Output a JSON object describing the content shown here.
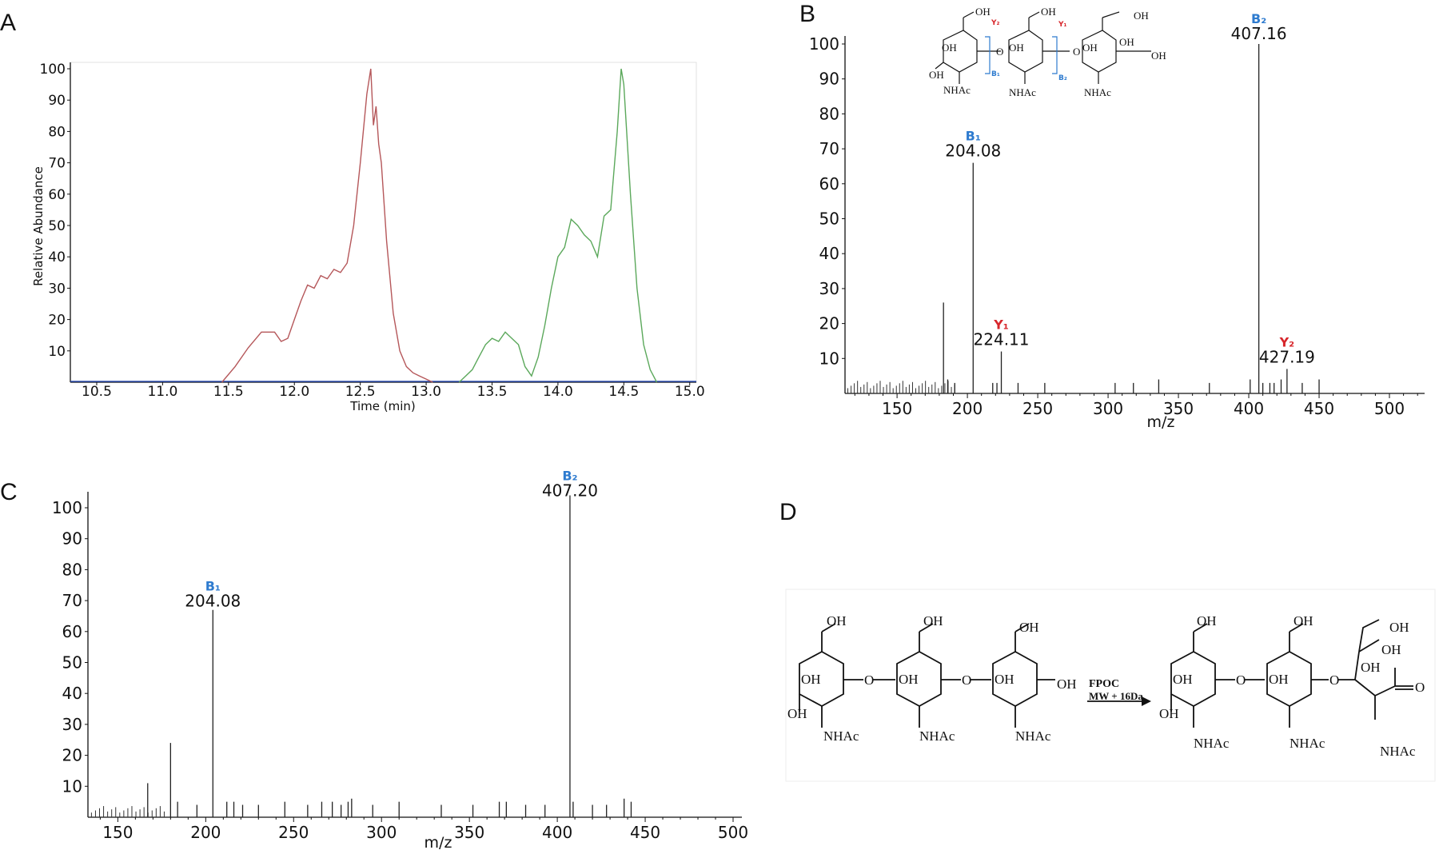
{
  "panels": {
    "a": "A",
    "b": "B",
    "c": "C",
    "d": "D"
  },
  "chart_data": [
    {
      "panel": "A",
      "type": "line",
      "xlabel": "Time (min)",
      "ylabel": "Relative Abundance",
      "xlim": [
        10.3,
        15.05
      ],
      "ylim": [
        0,
        100
      ],
      "xticks": [
        "10.5",
        "11.0",
        "11.5",
        "12.0",
        "12.5",
        "13.0",
        "13.5",
        "14.0",
        "14.5",
        "15.0"
      ],
      "yticks": [
        "10",
        "20",
        "30",
        "40",
        "50",
        "60",
        "70",
        "80",
        "90",
        "100"
      ],
      "series": [
        {
          "color": "#b5575a",
          "x": [
            11.45,
            11.55,
            11.65,
            11.75,
            11.85,
            11.9,
            11.95,
            12.0,
            12.05,
            12.1,
            12.15,
            12.2,
            12.25,
            12.3,
            12.35,
            12.4,
            12.45,
            12.5,
            12.55,
            12.58,
            12.6,
            12.62,
            12.64,
            12.66,
            12.7,
            12.75,
            12.8,
            12.85,
            12.9,
            12.95,
            13.0,
            13.05
          ],
          "y": [
            0,
            5,
            11,
            16,
            16,
            13,
            14,
            20,
            26,
            31,
            30,
            34,
            33,
            36,
            35,
            38,
            50,
            70,
            92,
            100,
            82,
            88,
            76,
            70,
            45,
            22,
            10,
            5,
            3,
            2,
            1,
            0
          ]
        },
        {
          "color": "#5ba85b",
          "x": [
            13.25,
            13.3,
            13.35,
            13.4,
            13.45,
            13.5,
            13.55,
            13.6,
            13.65,
            13.7,
            13.75,
            13.8,
            13.85,
            13.9,
            13.95,
            14.0,
            14.05,
            14.1,
            14.15,
            14.2,
            14.25,
            14.3,
            14.35,
            14.4,
            14.45,
            14.48,
            14.5,
            14.55,
            14.6,
            14.65,
            14.7,
            14.75
          ],
          "y": [
            0,
            2,
            4,
            8,
            12,
            14,
            13,
            16,
            14,
            12,
            5,
            2,
            8,
            18,
            30,
            40,
            43,
            52,
            50,
            47,
            45,
            40,
            53,
            55,
            80,
            100,
            95,
            60,
            30,
            12,
            4,
            0
          ]
        }
      ]
    },
    {
      "panel": "B",
      "type": "bar",
      "xlabel": "m/z",
      "xlim": [
        113,
        525
      ],
      "ylim": [
        0,
        100
      ],
      "xticks": [
        "150",
        "200",
        "250",
        "300",
        "350",
        "400",
        "450",
        "500"
      ],
      "yticks": [
        "10",
        "20",
        "30",
        "40",
        "50",
        "60",
        "70",
        "80",
        "90",
        "100"
      ],
      "peaks_mz": [
        183,
        186,
        191,
        204.08,
        224.11,
        218,
        221,
        236,
        255,
        305,
        318,
        336,
        372,
        401,
        410,
        407.16,
        415,
        418,
        423,
        427.19,
        438,
        450
      ],
      "peaks_int": [
        26,
        4,
        3,
        66,
        12,
        3,
        3,
        3,
        3,
        3,
        3,
        4,
        3,
        4,
        3,
        100,
        3,
        3,
        4,
        7,
        3,
        4
      ],
      "annotations": [
        {
          "ion": "B₁",
          "label": "204.08"
        },
        {
          "ion": "Y₁",
          "label": "224.11"
        },
        {
          "ion": "B₂",
          "label": "407.16"
        },
        {
          "ion": "Y₂",
          "label": "427.19"
        }
      ]
    },
    {
      "panel": "C",
      "type": "bar",
      "xlabel": "m/z",
      "xlim": [
        133,
        505
      ],
      "ylim": [
        0,
        100
      ],
      "xticks": [
        "150",
        "200",
        "250",
        "300",
        "350",
        "400",
        "450",
        "500"
      ],
      "yticks": [
        "10",
        "20",
        "30",
        "40",
        "50",
        "60",
        "70",
        "80",
        "90",
        "100"
      ],
      "peaks_mz": [
        167,
        180,
        184,
        195,
        204.08,
        212,
        216,
        221,
        230,
        245,
        258,
        266,
        272,
        277,
        281,
        283,
        295,
        310,
        334,
        352,
        367,
        371,
        382,
        393,
        409,
        407.2,
        420,
        428,
        438,
        442
      ],
      "peaks_int": [
        11,
        24,
        5,
        4,
        67,
        5,
        5,
        4,
        4,
        5,
        4,
        5,
        5,
        4,
        5,
        6,
        4,
        5,
        4,
        4,
        5,
        5,
        4,
        4,
        5,
        104,
        4,
        4,
        6,
        5
      ],
      "annotations": [
        {
          "ion": "B₁",
          "label": "204.08"
        },
        {
          "ion": "B₂",
          "label": "407.20"
        }
      ]
    }
  ],
  "scheme": {
    "arrow_top": "FPOC",
    "arrow_bottom": "MW + 16Da",
    "substituents": {
      "oh": "OH",
      "nhac": "NHAc",
      "o": "O"
    },
    "inset_ions": {
      "y2": "Y₂",
      "y1": "Y₁",
      "b1": "B₁",
      "b2": "B₂"
    }
  },
  "colors": {
    "trace_red": "#b5575a",
    "trace_green": "#5ba85b",
    "ion_b": "#2e7bcf",
    "ion_y": "#d7262b"
  }
}
